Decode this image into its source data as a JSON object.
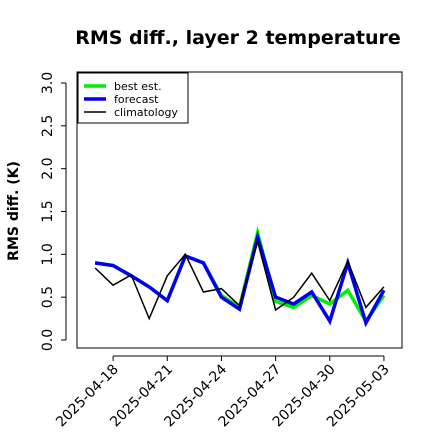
{
  "chart_data": {
    "type": "line",
    "title": "RMS diff., layer 2 temperature",
    "xlabel": "",
    "ylabel": "RMS diff. (K)",
    "ylim": [
      0,
      3.0
    ],
    "yticks": [
      "0.0",
      "0.5",
      "1.0",
      "1.5",
      "2.0",
      "2.5",
      "3.0"
    ],
    "xlim": [
      "2025-04-16",
      "2025-05-04"
    ],
    "xticks": [
      {
        "label": "2025-04-18",
        "color": "#000000"
      },
      {
        "label": "2025-04-21",
        "color": "#000000"
      },
      {
        "label": "2025-04-24",
        "color": "#008000"
      },
      {
        "label": "2025-04-27",
        "color": "#000000"
      },
      {
        "label": "2025-04-30",
        "color": "#000000"
      },
      {
        "label": "2025-05-03",
        "color": "#000000"
      }
    ],
    "grid": false,
    "legend_position": "top-left",
    "x": [
      "2025-04-17",
      "2025-04-18",
      "2025-04-19",
      "2025-04-20",
      "2025-04-21",
      "2025-04-22",
      "2025-04-23",
      "2025-04-24",
      "2025-04-25",
      "2025-04-26",
      "2025-04-27",
      "2025-04-28",
      "2025-04-29",
      "2025-04-30",
      "2025-05-01",
      "2025-05-02",
      "2025-05-03"
    ],
    "series": [
      {
        "name": "best est.",
        "color": "#00ee00",
        "width": 3.5,
        "values": [
          0.9,
          0.87,
          0.75,
          0.62,
          0.46,
          0.98,
          0.9,
          0.52,
          0.38,
          1.25,
          0.45,
          0.38,
          0.52,
          0.42,
          0.58,
          0.22,
          0.52
        ]
      },
      {
        "name": "forecast",
        "color": "#0000ee",
        "width": 3.5,
        "values": [
          0.9,
          0.87,
          0.75,
          0.62,
          0.46,
          0.98,
          0.9,
          0.5,
          0.36,
          1.2,
          0.5,
          0.42,
          0.56,
          0.22,
          0.9,
          0.2,
          0.58
        ]
      },
      {
        "name": "climatology",
        "color": "#000000",
        "width": 1.5,
        "values": [
          0.84,
          0.64,
          0.76,
          0.25,
          0.75,
          1.0,
          0.56,
          0.6,
          0.4,
          1.15,
          0.35,
          0.5,
          0.78,
          0.46,
          0.92,
          0.38,
          0.62
        ]
      }
    ]
  }
}
